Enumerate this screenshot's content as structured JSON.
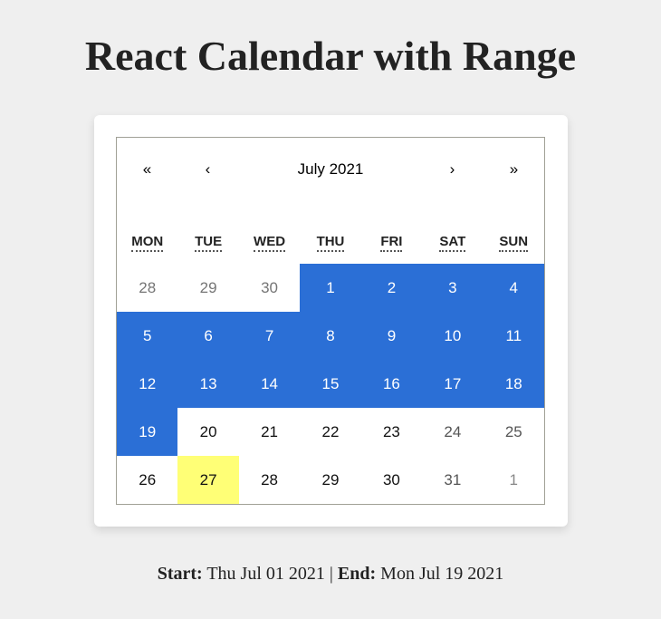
{
  "page": {
    "title": "React Calendar with Range"
  },
  "calendar": {
    "prev2_label": "«",
    "prev_label": "‹",
    "month_label": "July 2021",
    "next_label": "›",
    "next2_label": "»",
    "weekdays": [
      "MON",
      "TUE",
      "WED",
      "THU",
      "FRI",
      "SAT",
      "SUN"
    ],
    "days": [
      {
        "label": "28",
        "neighbor": true,
        "range": false,
        "today": false,
        "weekend": false
      },
      {
        "label": "29",
        "neighbor": true,
        "range": false,
        "today": false,
        "weekend": false
      },
      {
        "label": "30",
        "neighbor": true,
        "range": false,
        "today": false,
        "weekend": false
      },
      {
        "label": "1",
        "neighbor": false,
        "range": true,
        "today": false,
        "weekend": false
      },
      {
        "label": "2",
        "neighbor": false,
        "range": true,
        "today": false,
        "weekend": false
      },
      {
        "label": "3",
        "neighbor": false,
        "range": true,
        "today": false,
        "weekend": true
      },
      {
        "label": "4",
        "neighbor": false,
        "range": true,
        "today": false,
        "weekend": true
      },
      {
        "label": "5",
        "neighbor": false,
        "range": true,
        "today": false,
        "weekend": false
      },
      {
        "label": "6",
        "neighbor": false,
        "range": true,
        "today": false,
        "weekend": false
      },
      {
        "label": "7",
        "neighbor": false,
        "range": true,
        "today": false,
        "weekend": false
      },
      {
        "label": "8",
        "neighbor": false,
        "range": true,
        "today": false,
        "weekend": false
      },
      {
        "label": "9",
        "neighbor": false,
        "range": true,
        "today": false,
        "weekend": false
      },
      {
        "label": "10",
        "neighbor": false,
        "range": true,
        "today": false,
        "weekend": true
      },
      {
        "label": "11",
        "neighbor": false,
        "range": true,
        "today": false,
        "weekend": true
      },
      {
        "label": "12",
        "neighbor": false,
        "range": true,
        "today": false,
        "weekend": false
      },
      {
        "label": "13",
        "neighbor": false,
        "range": true,
        "today": false,
        "weekend": false
      },
      {
        "label": "14",
        "neighbor": false,
        "range": true,
        "today": false,
        "weekend": false
      },
      {
        "label": "15",
        "neighbor": false,
        "range": true,
        "today": false,
        "weekend": false
      },
      {
        "label": "16",
        "neighbor": false,
        "range": true,
        "today": false,
        "weekend": false
      },
      {
        "label": "17",
        "neighbor": false,
        "range": true,
        "today": false,
        "weekend": true
      },
      {
        "label": "18",
        "neighbor": false,
        "range": true,
        "today": false,
        "weekend": true
      },
      {
        "label": "19",
        "neighbor": false,
        "range": true,
        "today": false,
        "weekend": false
      },
      {
        "label": "20",
        "neighbor": false,
        "range": false,
        "today": false,
        "weekend": false
      },
      {
        "label": "21",
        "neighbor": false,
        "range": false,
        "today": false,
        "weekend": false
      },
      {
        "label": "22",
        "neighbor": false,
        "range": false,
        "today": false,
        "weekend": false
      },
      {
        "label": "23",
        "neighbor": false,
        "range": false,
        "today": false,
        "weekend": false
      },
      {
        "label": "24",
        "neighbor": false,
        "range": false,
        "today": false,
        "weekend": true
      },
      {
        "label": "25",
        "neighbor": false,
        "range": false,
        "today": false,
        "weekend": true
      },
      {
        "label": "26",
        "neighbor": false,
        "range": false,
        "today": false,
        "weekend": false
      },
      {
        "label": "27",
        "neighbor": false,
        "range": false,
        "today": true,
        "weekend": false
      },
      {
        "label": "28",
        "neighbor": false,
        "range": false,
        "today": false,
        "weekend": false
      },
      {
        "label": "29",
        "neighbor": false,
        "range": false,
        "today": false,
        "weekend": false
      },
      {
        "label": "30",
        "neighbor": false,
        "range": false,
        "today": false,
        "weekend": false
      },
      {
        "label": "31",
        "neighbor": false,
        "range": false,
        "today": false,
        "weekend": true
      },
      {
        "label": "1",
        "neighbor": true,
        "range": false,
        "today": false,
        "weekend": true
      }
    ]
  },
  "summary": {
    "start_label": "Start:",
    "start_value": "Thu Jul 01 2021",
    "separator": "|",
    "end_label": "End:",
    "end_value": "Mon Jul 19 2021"
  },
  "colors": {
    "range_fill": "#2b6fd6",
    "today_fill": "#ffff76",
    "page_background": "#efefef"
  }
}
